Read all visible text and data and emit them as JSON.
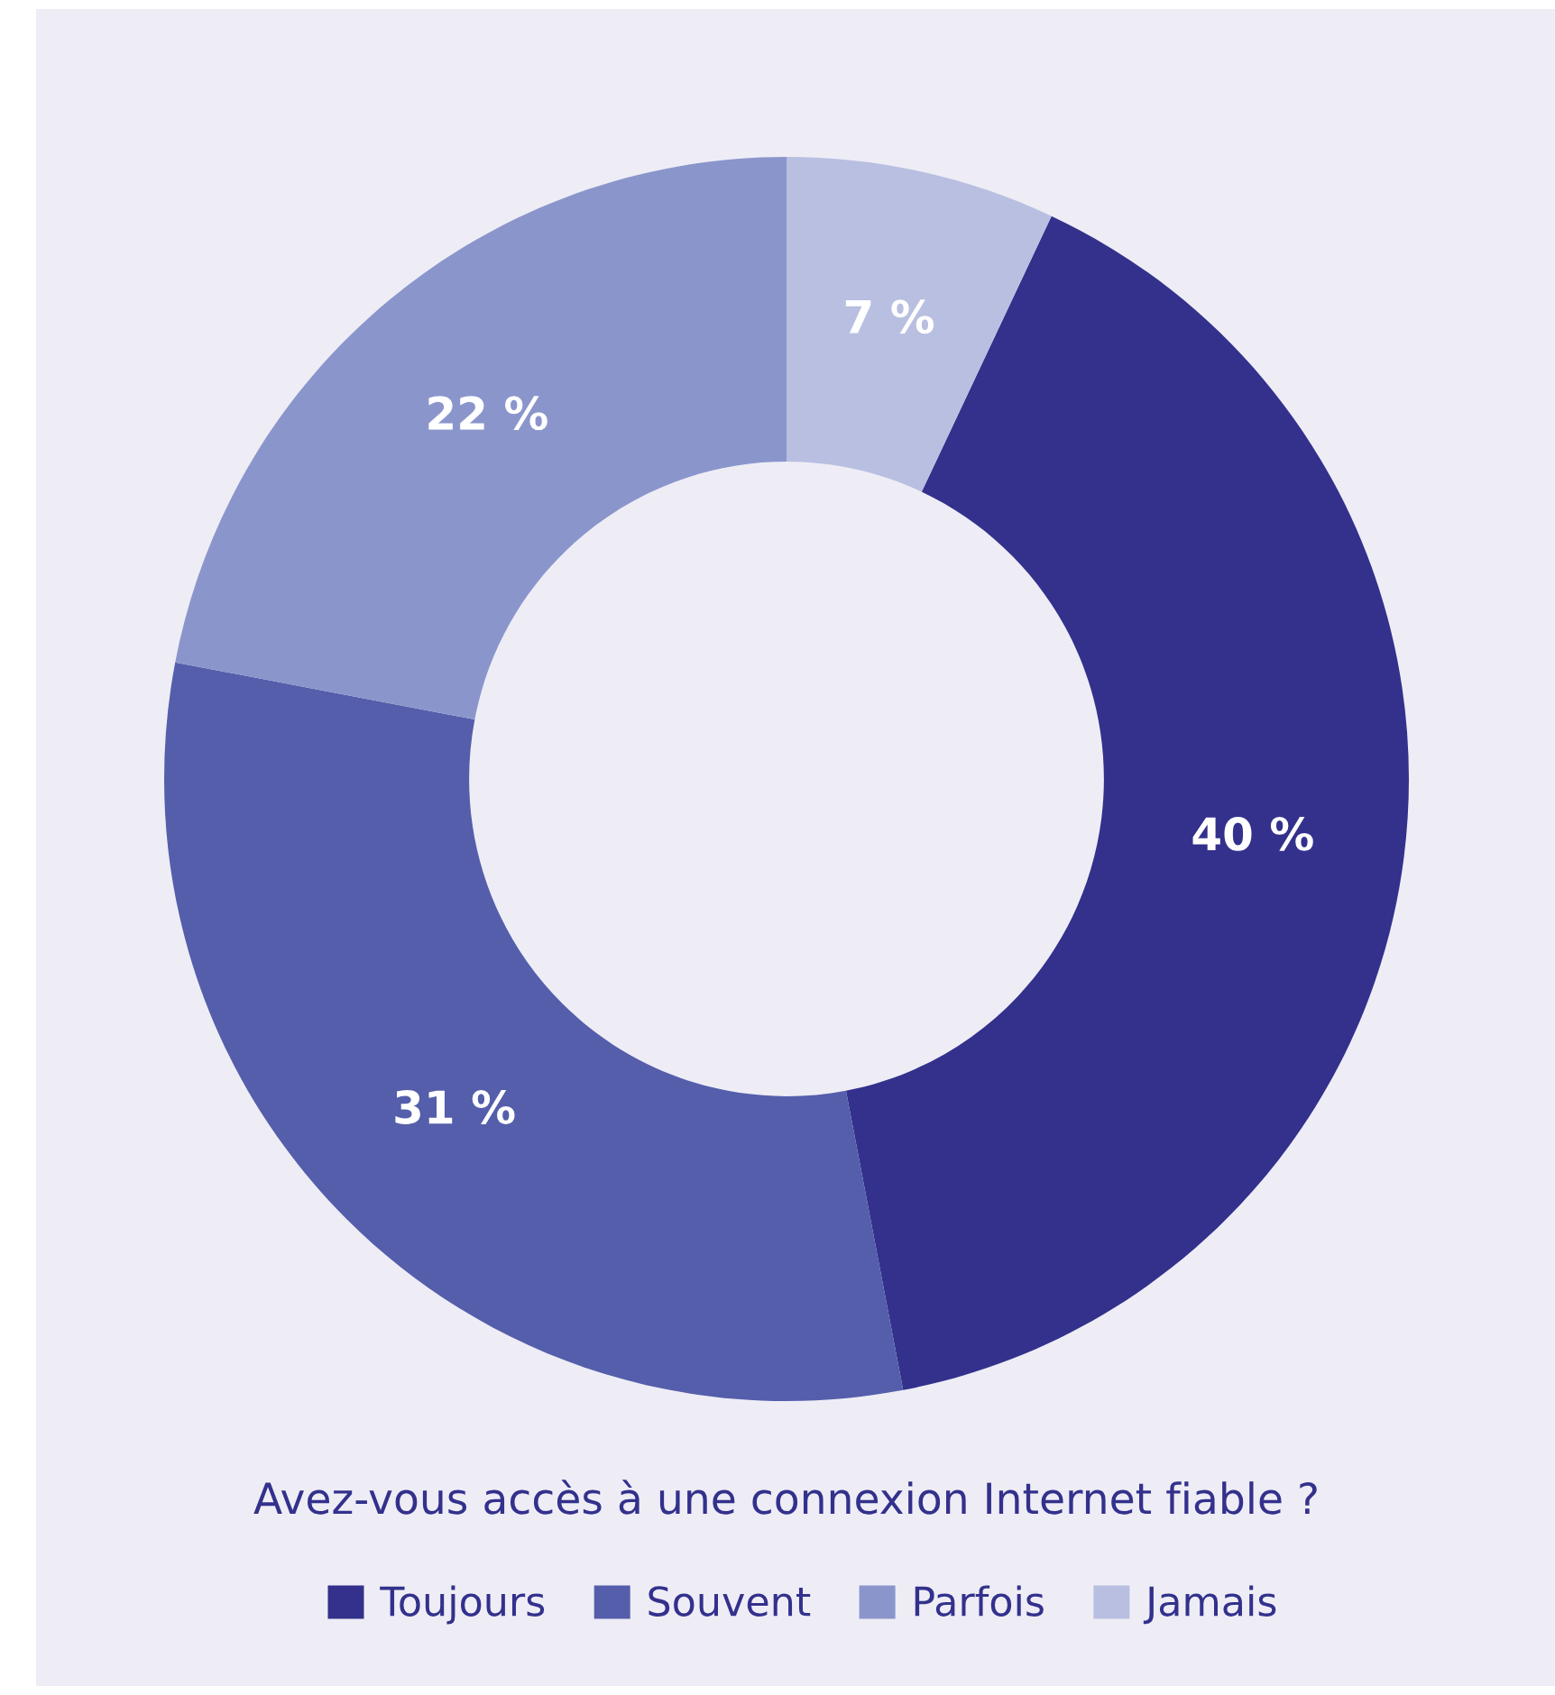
{
  "chart_data": {
    "type": "donut",
    "title": "Avez-vous accès à une connexion Internet fiable ?",
    "categories": [
      "Toujours",
      "Souvent",
      "Parfois",
      "Jamais"
    ],
    "values": [
      40,
      31,
      22,
      7
    ],
    "value_labels": [
      "40 %",
      "31 %",
      "22 %",
      "7 %"
    ],
    "colors": [
      "#33318c",
      "#545eab",
      "#8a96cb",
      "#b9bfe0"
    ],
    "legend": "bottom"
  }
}
